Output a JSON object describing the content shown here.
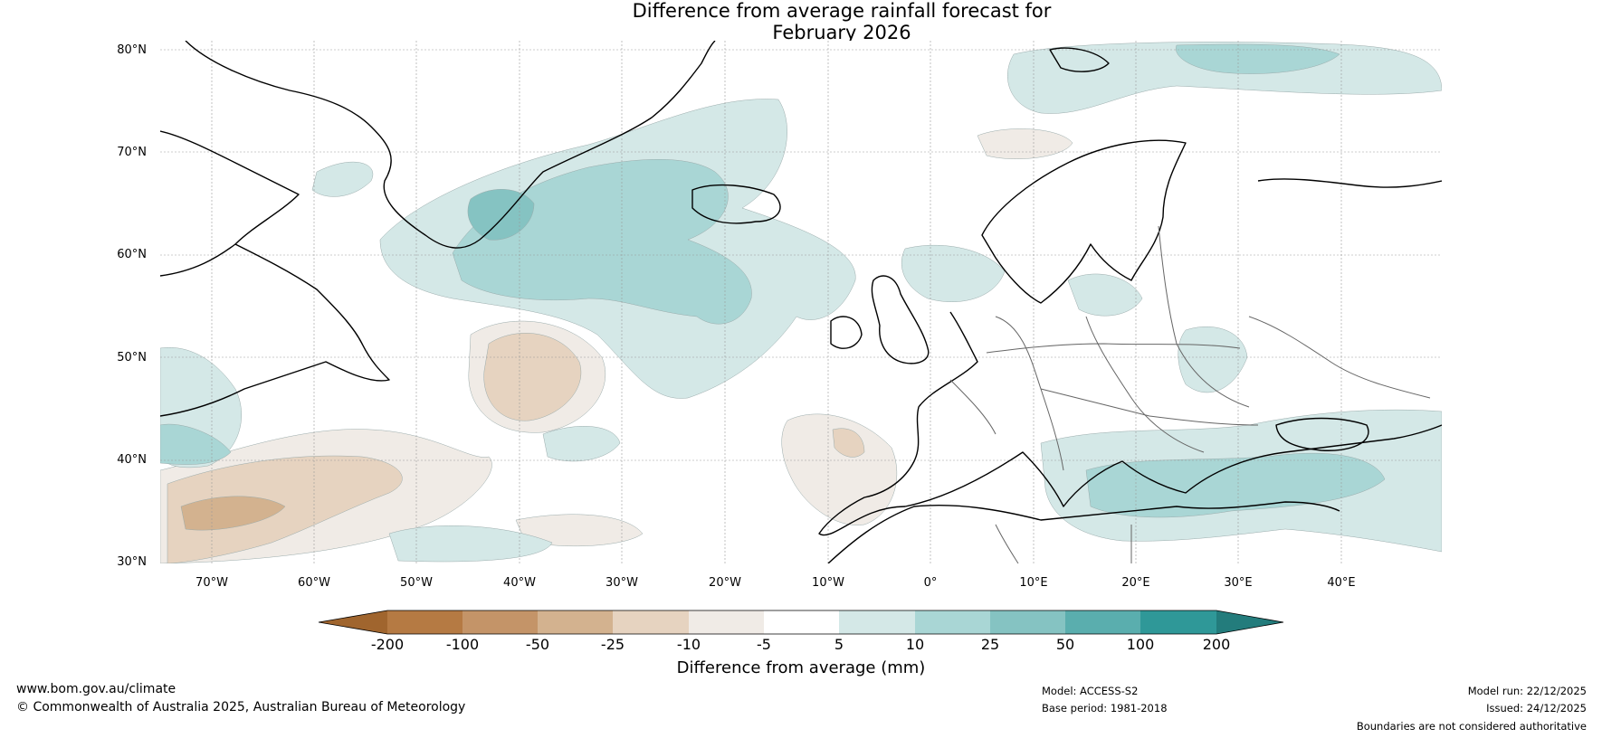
{
  "title_line1": "Difference from average rainfall forecast for",
  "title_line2": "February 2026",
  "lat_labels": [
    "80°N",
    "70°N",
    "60°N",
    "50°N",
    "40°N",
    "30°N"
  ],
  "lon_labels": [
    "70°W",
    "60°W",
    "50°W",
    "40°W",
    "30°W",
    "20°W",
    "10°W",
    "0°",
    "10°E",
    "20°E",
    "30°E",
    "40°E"
  ],
  "legend": {
    "ticks": [
      "-200",
      "-100",
      "-50",
      "-25",
      "-10",
      "-5",
      "5",
      "10",
      "25",
      "50",
      "100",
      "200"
    ],
    "colors": [
      "#a0652e",
      "#b57a43",
      "#c49468",
      "#d3b28f",
      "#e6d3c0",
      "#f0ebe6",
      "#ffffff",
      "#d4e8e7",
      "#a9d6d5",
      "#85c3c2",
      "#5aaeae",
      "#2f9898",
      "#237c7c"
    ],
    "unit_label": "Difference from average (mm)"
  },
  "footer": {
    "website": "www.bom.gov.au/climate",
    "copyright": "© Commonwealth of Australia 2025, Australian Bureau of Meteorology",
    "model": "Model: ACCESS-S2",
    "base_period": "Base period: 1981-2018",
    "model_run": "Model run: 22/12/2025",
    "issued": "Issued: 24/12/2025",
    "disclaimer": "Boundaries are not considered authoritative"
  },
  "colors": {
    "wet_light": "#d4e8e7",
    "wet_mid": "#a9d6d5",
    "wet_strong": "#85c3c2",
    "dry_light": "#f0ebe6",
    "dry_mid": "#e6d3c0",
    "dry_strong": "#d3b28f"
  }
}
